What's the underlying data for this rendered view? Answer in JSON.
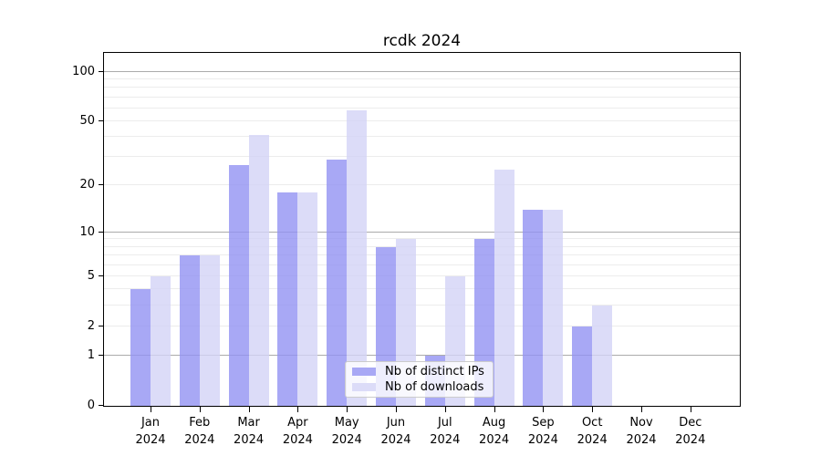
{
  "page": {
    "title": "rcdk 2024"
  },
  "chart_data": {
    "type": "bar",
    "title": "rcdk 2024",
    "x_labels": [
      {
        "line1": "Jan",
        "line2": "2024"
      },
      {
        "line1": "Feb",
        "line2": "2024"
      },
      {
        "line1": "Mar",
        "line2": "2024"
      },
      {
        "line1": "Apr",
        "line2": "2024"
      },
      {
        "line1": "May",
        "line2": "2024"
      },
      {
        "line1": "Jun",
        "line2": "2024"
      },
      {
        "line1": "Jul",
        "line2": "2024"
      },
      {
        "line1": "Aug",
        "line2": "2024"
      },
      {
        "line1": "Sep",
        "line2": "2024"
      },
      {
        "line1": "Oct",
        "line2": "2024"
      },
      {
        "line1": "Nov",
        "line2": "2024"
      },
      {
        "line1": "Dec",
        "line2": "2024"
      }
    ],
    "series": [
      {
        "name": "Nb of distinct IPs",
        "color_rgba": "rgba(146,146,243,0.8)",
        "swatch_color": "#a8a8f5",
        "values": [
          4,
          7,
          27,
          18,
          29,
          8,
          1,
          9,
          14,
          2,
          0,
          0
        ]
      },
      {
        "name": "Nb of downloads",
        "color_rgba": "rgba(211,211,246,0.8)",
        "swatch_color": "#dcdcf8",
        "values": [
          5,
          7,
          41,
          18,
          58,
          9,
          5,
          25,
          14,
          3,
          0,
          0
        ]
      }
    ],
    "y_axis": {
      "scale": "log1p",
      "ticks": [
        0,
        1,
        2,
        5,
        10,
        20,
        50,
        100
      ],
      "max": 130,
      "minor_gridlines": [
        2,
        3,
        4,
        5,
        6,
        7,
        8,
        9,
        20,
        30,
        40,
        50,
        60,
        70,
        80,
        90
      ],
      "major_gridlines": [
        1,
        10,
        100
      ]
    },
    "legend": {
      "position": "bottom-center"
    },
    "colors": {
      "axis": "#000000",
      "minor_grid": "#ececec",
      "major_grid": "#ababab",
      "background": "#ffffff",
      "legend_border": "#cccccc"
    }
  }
}
